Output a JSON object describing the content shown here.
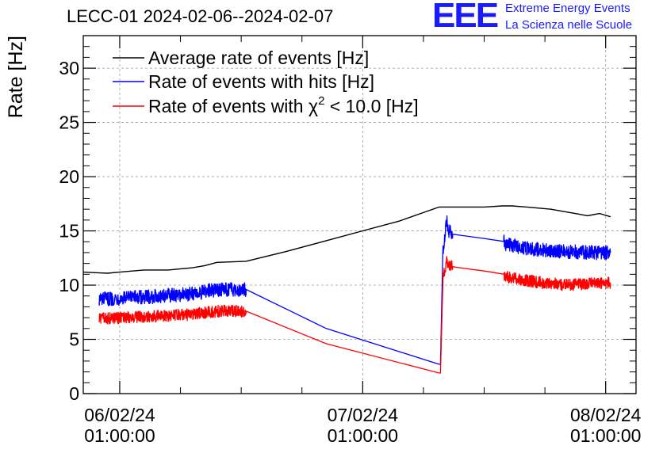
{
  "chart_data": {
    "type": "line",
    "title": "LECC-01 2024-02-06--2024-02-07",
    "ylabel": "Rate [Hz]",
    "xlabel": "",
    "ylim": [
      0,
      33
    ],
    "xlim_hours": [
      -3,
      42.5
    ],
    "grid": true,
    "legend_position": "top-left",
    "y_ticks": [
      0,
      5,
      10,
      15,
      20,
      25,
      30
    ],
    "x_ticks": [
      {
        "hours": 0,
        "date": "06/02/24",
        "time": "01:00:00"
      },
      {
        "hours": 20,
        "date": "07/02/24",
        "time": "01:00:00"
      },
      {
        "hours": 40,
        "date": "08/02/24",
        "time": "01:00:00"
      }
    ],
    "series": [
      {
        "name": "Average rate of events [Hz]",
        "color": "#000000",
        "noise": 0,
        "x": [
          -3,
          -1,
          0,
          2,
          4,
          6,
          7,
          8,
          10.4,
          13.7,
          17,
          20,
          23,
          26.3,
          28,
          30,
          31.5,
          32.3,
          33.5,
          34.5,
          35.5,
          36.5,
          37.5,
          38.5,
          39,
          39.5,
          40.4
        ],
        "y": [
          11.2,
          11.1,
          11.2,
          11.4,
          11.4,
          11.6,
          11.8,
          12.1,
          12.2,
          13.1,
          14.1,
          15.0,
          15.9,
          17.2,
          17.2,
          17.2,
          17.3,
          17.3,
          17.2,
          17.1,
          17.0,
          16.8,
          16.6,
          16.4,
          16.5,
          16.6,
          16.3
        ]
      },
      {
        "name": "Rate of events with hits [Hz]",
        "color": "#0000ff",
        "noise": 0.65,
        "x": [
          -1.7,
          2,
          6,
          8,
          10.4,
          17,
          26.3,
          26.4,
          26.6,
          26.9,
          27.1,
          27.4,
          28,
          30,
          31.6,
          31.7,
          33,
          35,
          37,
          39,
          40.4
        ],
        "y": [
          8.7,
          8.9,
          9.2,
          9.6,
          9.6,
          6.0,
          2.7,
          2.7,
          13.0,
          16.0,
          15.0,
          14.7,
          14.6,
          14.3,
          14.2,
          13.8,
          13.5,
          13.2,
          13.1,
          13.0,
          13.0
        ]
      },
      {
        "name": "Rate of events with χ2 < 10.0 [Hz]",
        "color": "#ff0000",
        "noise": 0.55,
        "x": [
          -1.7,
          2,
          6,
          8,
          10.4,
          17,
          26.3,
          26.4,
          26.6,
          26.9,
          27.1,
          27.4,
          28,
          30,
          31.6,
          31.7,
          33,
          35,
          37,
          39,
          40.4
        ],
        "y": [
          6.9,
          7.1,
          7.3,
          7.6,
          7.6,
          4.6,
          1.9,
          1.9,
          10.5,
          12.2,
          11.8,
          11.7,
          11.6,
          11.3,
          11.0,
          10.8,
          10.5,
          10.2,
          10.0,
          10.2,
          10.2
        ]
      }
    ],
    "legend": [
      {
        "text_pre": "Rate of events with ",
        "chi": "χ",
        "sup": "2",
        "text_post": " < 10.0 [Hz]"
      }
    ]
  },
  "logo": {
    "mark": "EEE",
    "line1": "Extreme Energy Events",
    "line2": "La Scienza nelle Scuole"
  }
}
